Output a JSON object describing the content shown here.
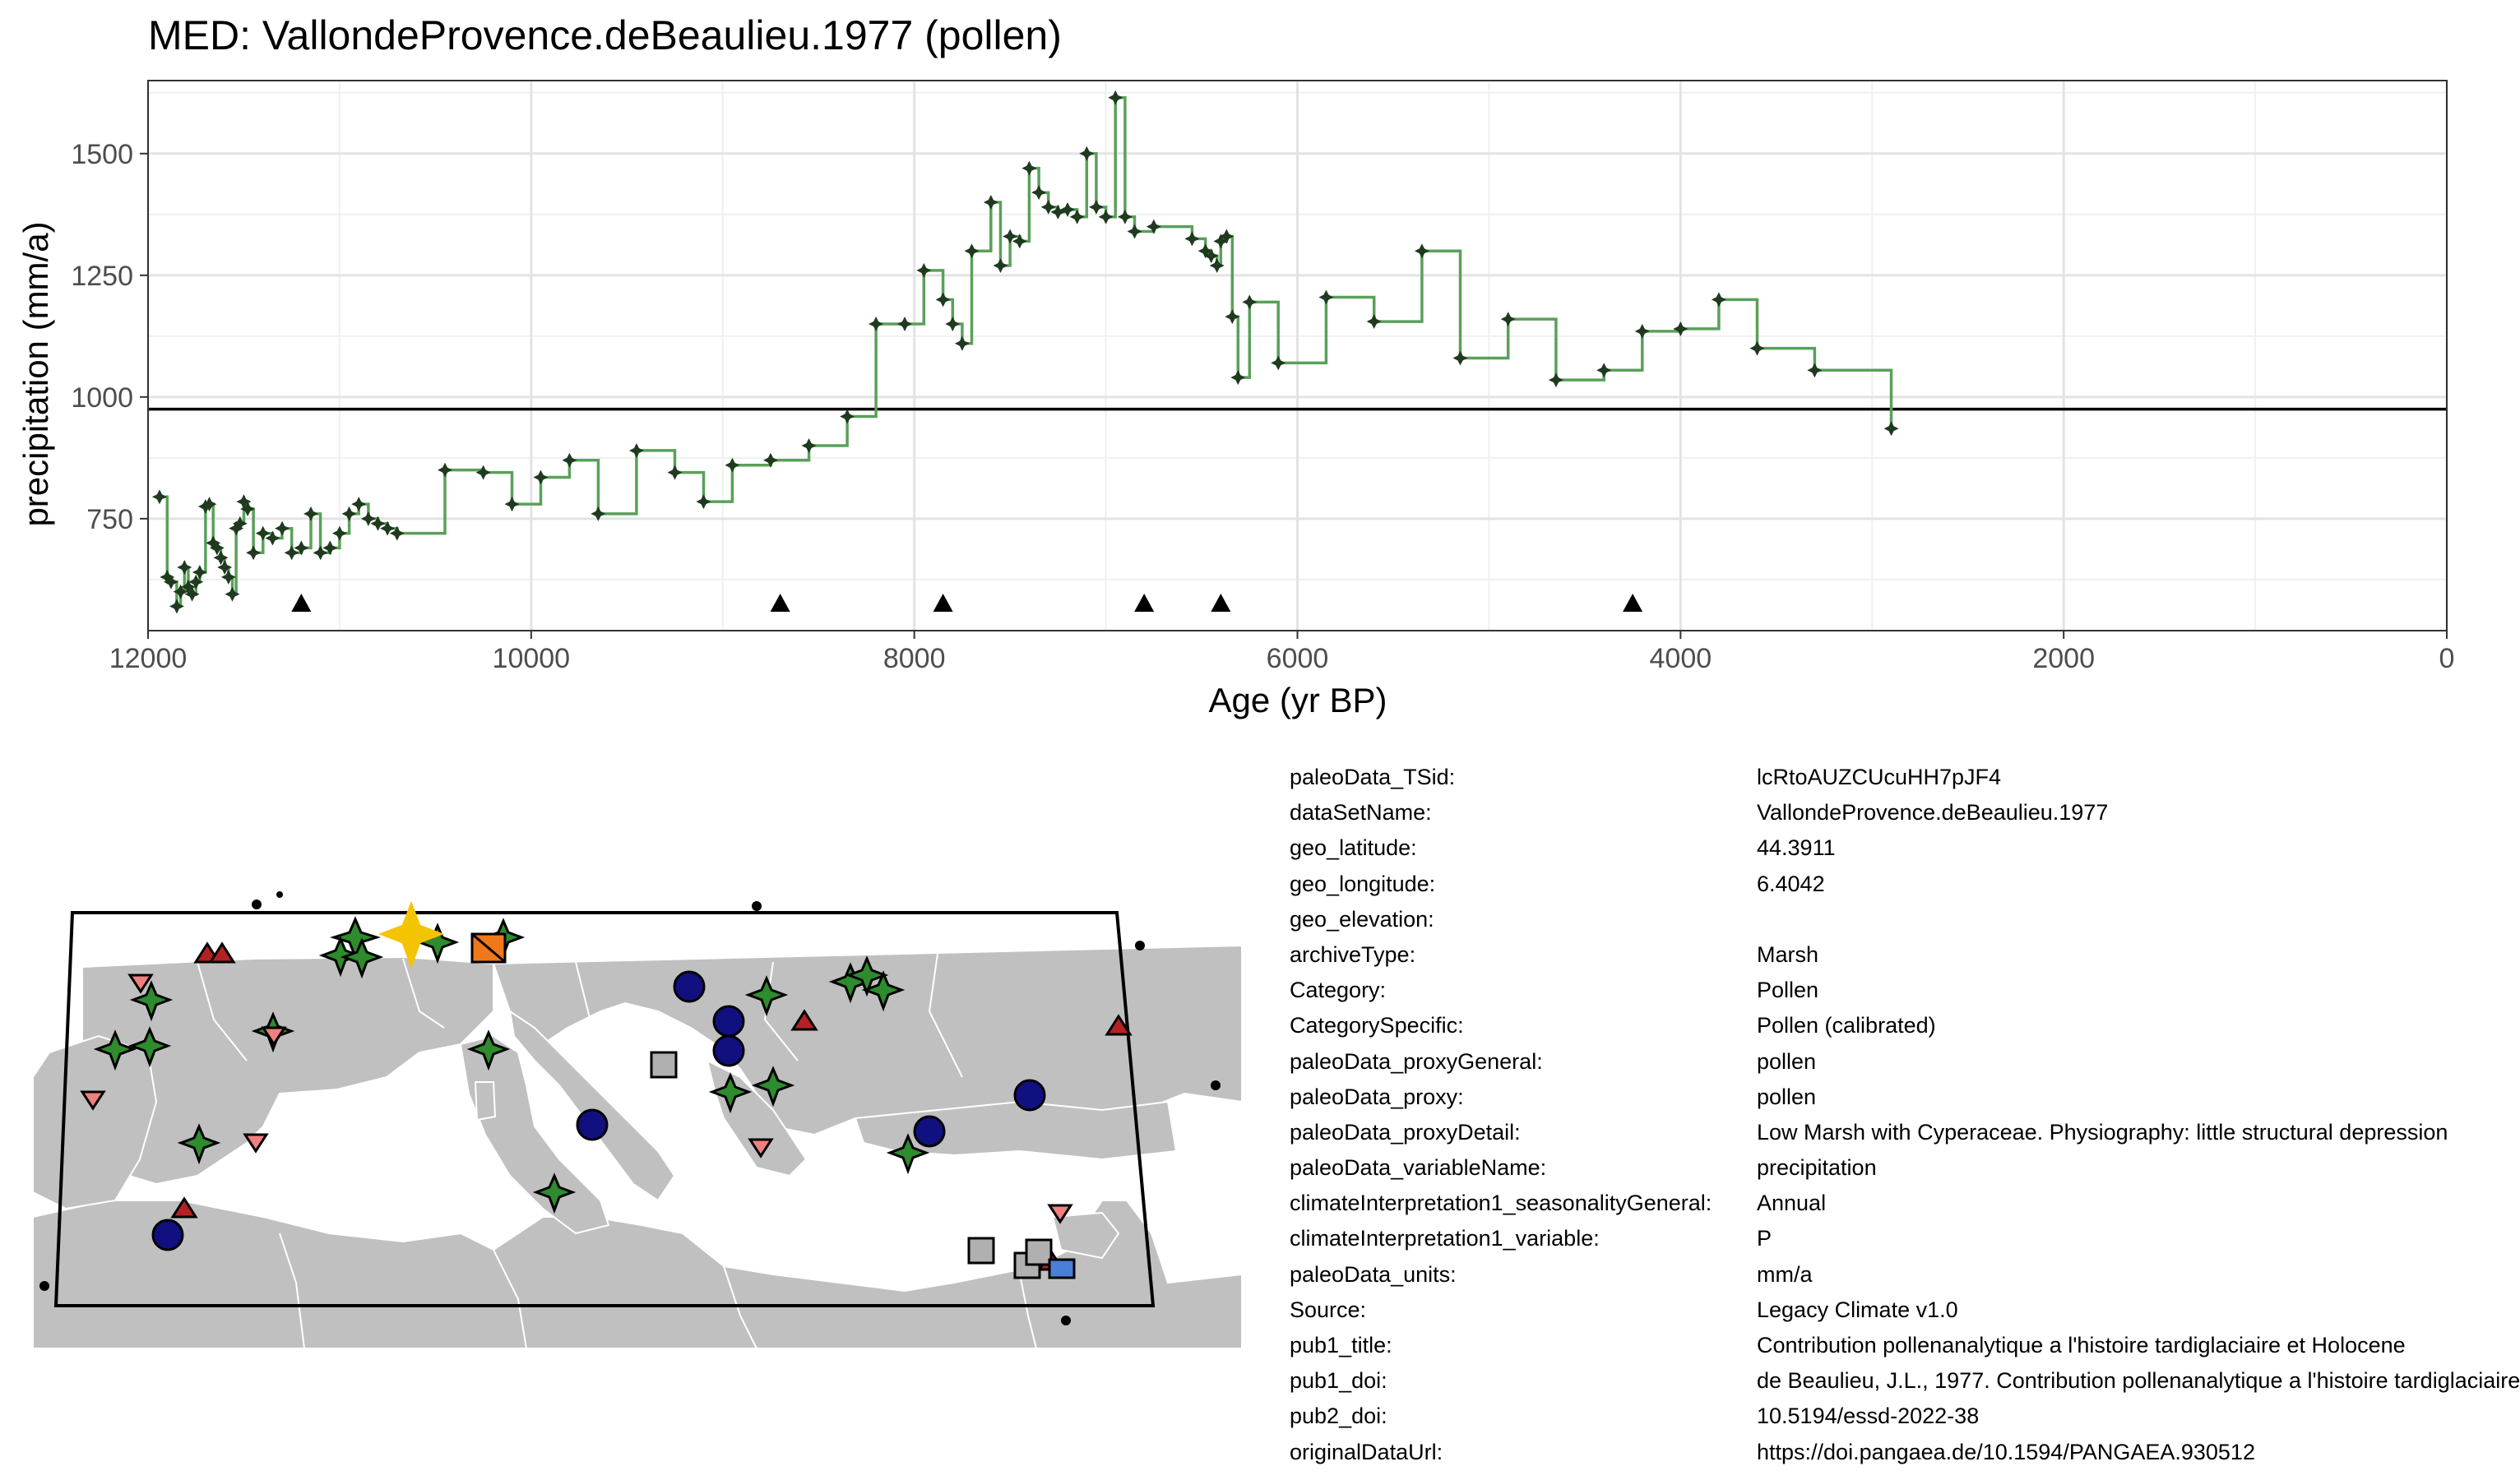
{
  "chart_data": {
    "type": "line",
    "title": "MED: VallondeProvence.deBeaulieu.1977 (pollen)",
    "xlabel": "Age (yr BP)",
    "ylabel": "precipitation (mm/a)",
    "xlim": [
      12000,
      0
    ],
    "ylim": [
      520,
      1650
    ],
    "x_ticks": [
      12000,
      10000,
      8000,
      6000,
      4000,
      2000,
      0
    ],
    "y_ticks": [
      750,
      1000,
      1250,
      1500
    ],
    "grid": true,
    "reference_line": 975,
    "line_color": "#5aa05a",
    "marker_color": "#1f3a1f",
    "series": [
      {
        "x": [
          11940,
          11900,
          11880,
          11850,
          11830,
          11810,
          11790,
          11770,
          11750,
          11730,
          11700,
          11680,
          11660,
          11640,
          11620,
          11600,
          11580,
          11560,
          11540,
          11520,
          11500,
          11480,
          11450,
          11400,
          11350,
          11300,
          11250,
          11200,
          11150,
          11100,
          11050,
          11000,
          10950,
          10900,
          10850,
          10800,
          10750,
          10700,
          10450,
          10250,
          10100,
          9950,
          9800,
          9650,
          9450,
          9250,
          9100,
          8950,
          8750,
          8550,
          8350,
          8200,
          8050,
          7950,
          7850,
          7800,
          7750,
          7700,
          7600,
          7550,
          7500,
          7450,
          7400,
          7350,
          7300,
          7250,
          7200,
          7150,
          7100,
          7050,
          7000,
          6950,
          6900,
          6850,
          6750,
          6550,
          6480,
          6450,
          6420,
          6400,
          6370,
          6340,
          6310,
          6250,
          6100,
          5850,
          5600,
          5350,
          5150,
          4900,
          4650,
          4400,
          4200,
          4000,
          3800,
          3600,
          3300,
          2900
        ],
        "y": [
          795,
          630,
          620,
          570,
          600,
          650,
          610,
          595,
          620,
          640,
          775,
          780,
          700,
          690,
          670,
          650,
          630,
          595,
          730,
          740,
          785,
          770,
          680,
          720,
          710,
          730,
          680,
          690,
          760,
          680,
          690,
          720,
          760,
          780,
          750,
          740,
          730,
          720,
          850,
          845,
          780,
          835,
          870,
          760,
          890,
          845,
          785,
          860,
          870,
          900,
          960,
          1150,
          1150,
          1260,
          1200,
          1150,
          1110,
          1300,
          1400,
          1270,
          1330,
          1320,
          1470,
          1420,
          1390,
          1380,
          1385,
          1370,
          1500,
          1390,
          1370,
          1615,
          1370,
          1340,
          1350,
          1325,
          1300,
          1290,
          1270,
          1320,
          1330,
          1165,
          1040,
          1195,
          1070,
          1205,
          1155,
          1300,
          1080,
          1160,
          1035,
          1055,
          1135,
          1140,
          1200,
          1100,
          1055,
          935
        ]
      }
    ],
    "age_markers": [
      11200,
      8700,
      7850,
      6800,
      6400,
      4250
    ]
  },
  "map": {
    "land_color": "#c0c0c0",
    "sea_color": "#ffffff"
  },
  "metadata": [
    {
      "key": "paleoData_TSid:",
      "value": "lcRtoAUZCUcuHH7pJF4"
    },
    {
      "key": "dataSetName:",
      "value": "VallondeProvence.deBeaulieu.1977"
    },
    {
      "key": "geo_latitude:",
      "value": "44.3911"
    },
    {
      "key": "geo_longitude:",
      "value": "6.4042"
    },
    {
      "key": "geo_elevation:",
      "value": ""
    },
    {
      "key": "archiveType:",
      "value": "Marsh"
    },
    {
      "key": "Category:",
      "value": "Pollen"
    },
    {
      "key": "CategorySpecific:",
      "value": "Pollen (calibrated)"
    },
    {
      "key": "paleoData_proxyGeneral:",
      "value": "pollen"
    },
    {
      "key": "paleoData_proxy:",
      "value": "pollen"
    },
    {
      "key": "paleoData_proxyDetail:",
      "value": "Low Marsh with Cyperaceae. Physiography: little structural depression"
    },
    {
      "key": "paleoData_variableName:",
      "value": "precipitation"
    },
    {
      "key": "climateInterpretation1_seasonalityGeneral:",
      "value": "Annual"
    },
    {
      "key": "climateInterpretation1_variable:",
      "value": "P"
    },
    {
      "key": "paleoData_units:",
      "value": "mm/a"
    },
    {
      "key": "Source:",
      "value": "Legacy Climate v1.0"
    },
    {
      "key": "pub1_title:",
      "value": "Contribution pollenanalytique a l'histoire tardiglaciaire et Holocene"
    },
    {
      "key": "pub1_doi:",
      "value": "de Beaulieu, J.L., 1977. Contribution pollenanalytique a l'histoire tardiglaciaire"
    },
    {
      "key": "pub2_doi:",
      "value": "10.5194/essd-2022-38"
    },
    {
      "key": "originalDataUrl:",
      "value": "https://doi.pangaea.de/10.1594/PANGAEA.930512"
    }
  ]
}
